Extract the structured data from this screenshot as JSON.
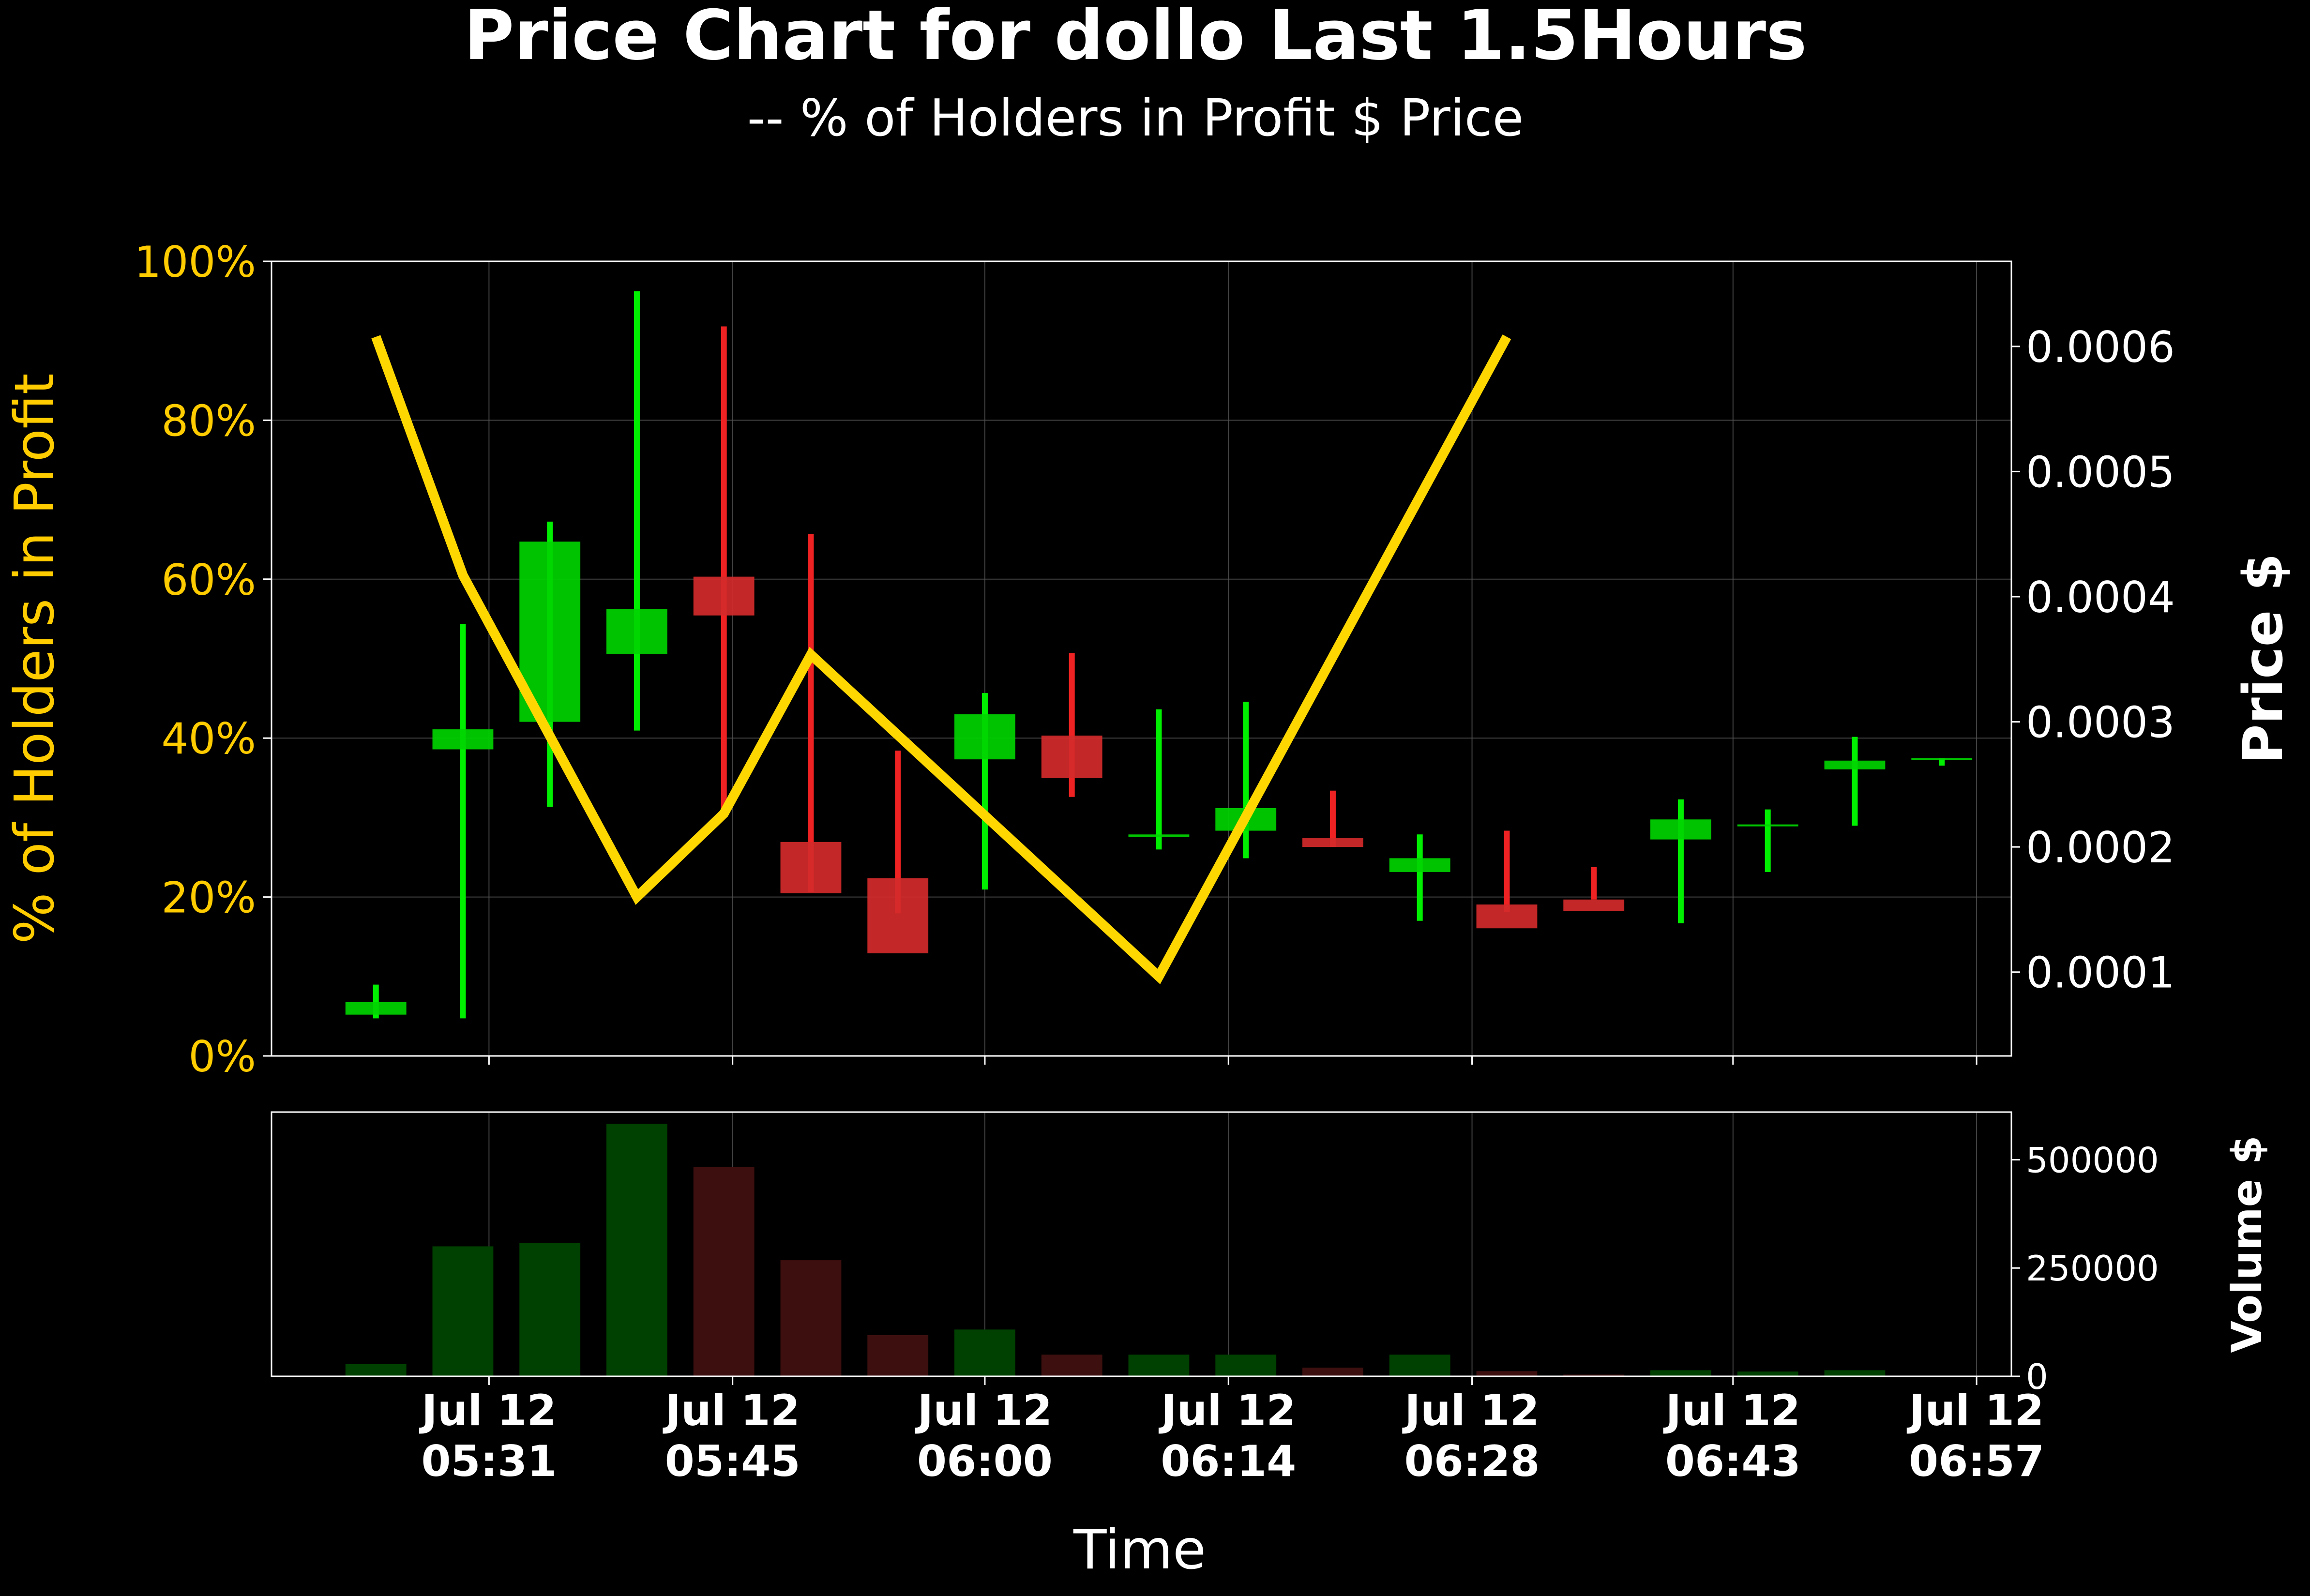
{
  "colors": {
    "background": "#000000",
    "up": "#00d400",
    "down": "#d42a2a",
    "up_wick": "#00ee00",
    "down_wick": "#ee2222",
    "holders_line": "#ffd700",
    "axis_text": "#ffffff",
    "holders_axis_text": "#ffcc00",
    "vol_up": "#004000",
    "vol_down": "#3d0f0f",
    "grid": "#555555"
  },
  "chart_data": [
    {
      "type": "candlestick",
      "title": "Price Chart for dollo Last 1.5Hours",
      "subtitle": "-- % of Holders in Profit $ Price",
      "xlabel": "Time",
      "ylabel_left": "% of Holders in Profit",
      "ylabel_right": "Price $",
      "x_ticks": [
        {
          "t": 6.5,
          "line1": "Jul 12",
          "line2": "05:31"
        },
        {
          "t": 20.5,
          "line1": "Jul 12",
          "line2": "05:45"
        },
        {
          "t": 35.0,
          "line1": "Jul 12",
          "line2": "06:00"
        },
        {
          "t": 49.0,
          "line1": "Jul 12",
          "line2": "06:14"
        },
        {
          "t": 63.0,
          "line1": "Jul 12",
          "line2": "06:28"
        },
        {
          "t": 78.0,
          "line1": "Jul 12",
          "line2": "06:43"
        },
        {
          "t": 92.0,
          "line1": "Jul 12",
          "line2": "06:57"
        }
      ],
      "xlim": [
        -6,
        94
      ],
      "left_axis": {
        "ylim": [
          0,
          100
        ],
        "ticks": [
          "0%",
          "20%",
          "40%",
          "60%",
          "80%",
          "100%"
        ],
        "tick_values": [
          0,
          20,
          40,
          60,
          80,
          100
        ]
      },
      "right_axis": {
        "ylim": [
          3.3e-05,
          0.000668
        ],
        "ticks": [
          "0.0001",
          "0.0002",
          "0.0003",
          "0.0004",
          "0.0005",
          "0.0006"
        ],
        "tick_values": [
          0.0001,
          0.0002,
          0.0003,
          0.0004,
          0.0005,
          0.0006
        ]
      },
      "candles": [
        {
          "t": 0,
          "open": 6.6e-05,
          "close": 7.6e-05,
          "high": 9e-05,
          "low": 6.3e-05
        },
        {
          "t": 5,
          "open": 0.000278,
          "close": 0.000294,
          "high": 0.000378,
          "low": 6.3e-05
        },
        {
          "t": 10,
          "open": 0.0003,
          "close": 0.000444,
          "high": 0.00046,
          "low": 0.000232
        },
        {
          "t": 15,
          "open": 0.000354,
          "close": 0.00039,
          "high": 0.000644,
          "low": 0.000293
        },
        {
          "t": 20,
          "open": 0.000416,
          "close": 0.000385,
          "high": 0.000616,
          "low": 0.000229
        },
        {
          "t": 25,
          "open": 0.000204,
          "close": 0.000163,
          "high": 0.00045,
          "low": 0.000164
        },
        {
          "t": 30,
          "open": 0.000175,
          "close": 0.000115,
          "high": 0.000277,
          "low": 0.000147
        },
        {
          "t": 35,
          "open": 0.00027,
          "close": 0.000306,
          "high": 0.000323,
          "low": 0.000166
        },
        {
          "t": 40,
          "open": 0.000289,
          "close": 0.000255,
          "high": 0.000355,
          "low": 0.00024
        },
        {
          "t": 45,
          "open": 0.000208,
          "close": 0.00021,
          "high": 0.00031,
          "low": 0.000198
        },
        {
          "t": 50,
          "open": 0.000213,
          "close": 0.000231,
          "high": 0.000316,
          "low": 0.000191
        },
        {
          "t": 55,
          "open": 0.000207,
          "close": 0.0002,
          "high": 0.000245,
          "low": 0.0002
        },
        {
          "t": 60,
          "open": 0.00018,
          "close": 0.000191,
          "high": 0.00021,
          "low": 0.000141
        },
        {
          "t": 65,
          "open": 0.000154,
          "close": 0.000135,
          "high": 0.000213,
          "low": 0.000148
        },
        {
          "t": 70,
          "open": 0.000158,
          "close": 0.000149,
          "high": 0.000184,
          "low": 0.000158
        },
        {
          "t": 75,
          "open": 0.000206,
          "close": 0.000222,
          "high": 0.000238,
          "low": 0.000139
        },
        {
          "t": 80,
          "open": 0.000217,
          "close": 0.000218,
          "high": 0.00023,
          "low": 0.00018
        },
        {
          "t": 85,
          "open": 0.000262,
          "close": 0.000269,
          "high": 0.000288,
          "low": 0.000217
        },
        {
          "t": 90,
          "open": 0.00027,
          "close": 0.000271,
          "high": 0.000271,
          "low": 0.000265
        }
      ],
      "holders_in_profit_pct": [
        {
          "t": 0,
          "value": 90.5
        },
        {
          "t": 5,
          "value": 60.5
        },
        {
          "t": 15,
          "value": 20.0
        },
        {
          "t": 20,
          "value": 30.5
        },
        {
          "t": 25,
          "value": 50.5
        },
        {
          "t": 45,
          "value": 10.0
        },
        {
          "t": 65,
          "value": 90.5
        }
      ]
    },
    {
      "type": "bar",
      "ylabel_right": "Volume $",
      "ylim": [
        0,
        610000
      ],
      "ticks": [
        "0",
        "250000",
        "500000"
      ],
      "tick_values": [
        0,
        250000,
        500000
      ],
      "bars": [
        {
          "t": 0,
          "value": 28000,
          "dir": "up"
        },
        {
          "t": 5,
          "value": 300000,
          "dir": "up"
        },
        {
          "t": 10,
          "value": 308000,
          "dir": "up"
        },
        {
          "t": 15,
          "value": 583000,
          "dir": "up"
        },
        {
          "t": 20,
          "value": 483000,
          "dir": "down"
        },
        {
          "t": 25,
          "value": 268000,
          "dir": "down"
        },
        {
          "t": 30,
          "value": 95000,
          "dir": "down"
        },
        {
          "t": 35,
          "value": 108000,
          "dir": "up"
        },
        {
          "t": 40,
          "value": 50000,
          "dir": "down"
        },
        {
          "t": 45,
          "value": 50000,
          "dir": "up"
        },
        {
          "t": 50,
          "value": 50000,
          "dir": "up"
        },
        {
          "t": 55,
          "value": 20000,
          "dir": "down"
        },
        {
          "t": 60,
          "value": 50000,
          "dir": "up"
        },
        {
          "t": 65,
          "value": 12000,
          "dir": "down"
        },
        {
          "t": 70,
          "value": 4000,
          "dir": "down"
        },
        {
          "t": 75,
          "value": 14000,
          "dir": "up"
        },
        {
          "t": 80,
          "value": 11000,
          "dir": "up"
        },
        {
          "t": 85,
          "value": 14000,
          "dir": "up"
        },
        {
          "t": 90,
          "value": 1000,
          "dir": "up"
        }
      ]
    }
  ]
}
